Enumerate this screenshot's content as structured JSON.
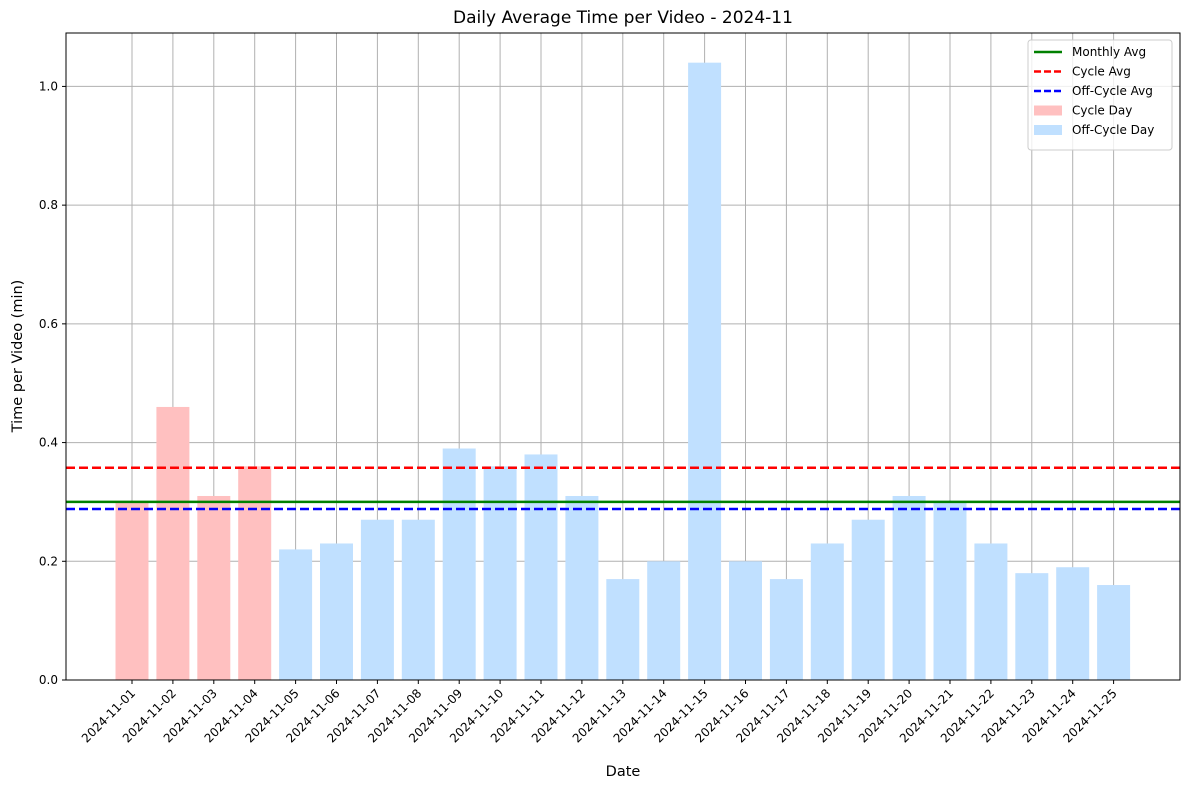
{
  "chart_data": {
    "type": "bar",
    "title": "Daily Average Time per Video - 2024-11",
    "xlabel": "Date",
    "ylabel": "Time per Video (min)",
    "ylim": [
      0,
      1.09
    ],
    "yticks": [
      "0.0",
      "0.2",
      "0.4",
      "0.6",
      "0.8",
      "1.0"
    ],
    "grid": true,
    "legend_position": "top-right",
    "categories": [
      "2024-11-01",
      "2024-11-02",
      "2024-11-03",
      "2024-11-04",
      "2024-11-05",
      "2024-11-06",
      "2024-11-07",
      "2024-11-08",
      "2024-11-09",
      "2024-11-10",
      "2024-11-11",
      "2024-11-12",
      "2024-11-13",
      "2024-11-14",
      "2024-11-15",
      "2024-11-16",
      "2024-11-17",
      "2024-11-18",
      "2024-11-19",
      "2024-11-20",
      "2024-11-21",
      "2024-11-22",
      "2024-11-23",
      "2024-11-24",
      "2024-11-25"
    ],
    "values": [
      0.3,
      0.46,
      0.31,
      0.36,
      0.22,
      0.23,
      0.27,
      0.27,
      0.39,
      0.36,
      0.38,
      0.31,
      0.17,
      0.2,
      1.04,
      0.2,
      0.17,
      0.23,
      0.27,
      0.31,
      0.3,
      0.23,
      0.18,
      0.19,
      0.16
    ],
    "day_type": [
      "cycle",
      "cycle",
      "cycle",
      "cycle",
      "off",
      "off",
      "off",
      "off",
      "off",
      "off",
      "off",
      "off",
      "off",
      "off",
      "off",
      "off",
      "off",
      "off",
      "off",
      "off",
      "off",
      "off",
      "off",
      "off",
      "off"
    ],
    "bar_series": [
      {
        "key": "cycle",
        "name": "Cycle Day",
        "color": "#ffc0c0"
      },
      {
        "key": "off",
        "name": "Off-Cycle Day",
        "color": "#c0e0ff"
      }
    ],
    "reference_lines": [
      {
        "name": "Monthly Avg",
        "value": 0.3,
        "color": "#008000",
        "style": "solid"
      },
      {
        "name": "Cycle Avg",
        "value": 0.3575,
        "color": "#ff0000",
        "style": "dashed"
      },
      {
        "name": "Off-Cycle Avg",
        "value": 0.288,
        "color": "#0000ff",
        "style": "dashed"
      }
    ]
  }
}
